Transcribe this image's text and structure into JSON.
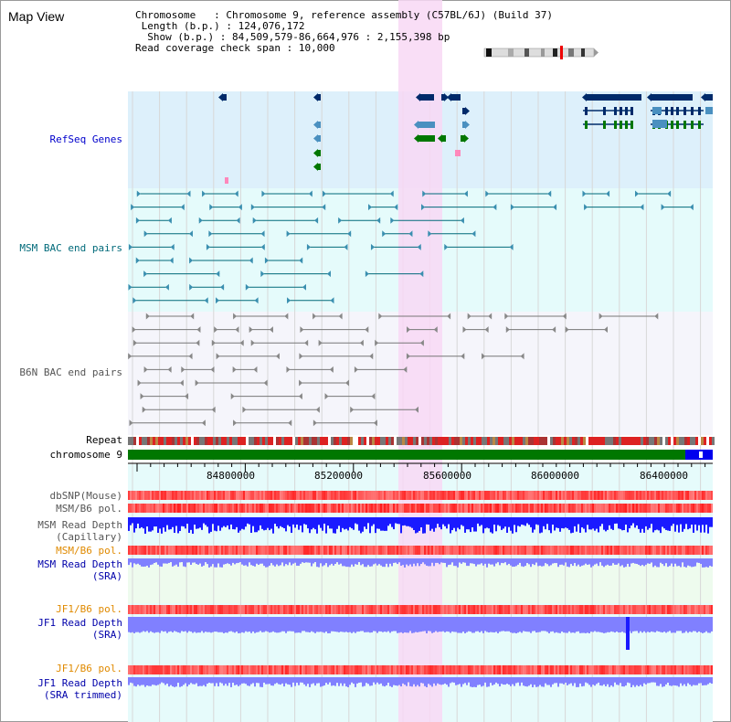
{
  "title": "Map View",
  "info": {
    "chromosome_key": "Chromosome",
    "chromosome_val": "Chromosome 9, reference assembly (C57BL/6J) (Build 37)",
    "length_key": "Length (b.p.)",
    "length_val": "124,076,172",
    "show_key": "Show (b.p.)",
    "show_val": "84,509,579-86,664,976 : 2,155,398 bp",
    "read_key": "Read coverage check span",
    "read_val": "10,000"
  },
  "tracks": {
    "refseq": "RefSeq Genes",
    "msm_bac": "MSM BAC end pairs",
    "b6n_bac": "B6N BAC end pairs",
    "repeat": "Repeat",
    "chromosome": "chromosome 9",
    "dbsnp": "dbSNP(Mouse)",
    "msm_b6_pol": "MSM/B6 pol.",
    "msm_read_depth_cap_1": "MSM Read Depth",
    "msm_read_depth_cap_2": "(Capillary)",
    "msm_b6_pol_2": "MSM/B6 pol.",
    "msm_read_depth_sra_1": "MSM Read Depth",
    "msm_read_depth_sra_2": "(SRA)",
    "jf1_b6_pol": "JF1/B6 pol.",
    "jf1_read_depth_sra_1": "JF1 Read Depth",
    "jf1_read_depth_sra_2": "(SRA)",
    "jf1_b6_pol_2": "JF1/B6 pol.",
    "jf1_read_depth_trim_1": "JF1 Read Depth",
    "jf1_read_depth_trim_2": "(SRA trimmed)"
  },
  "axis_ticks": [
    "84800000",
    "85200000",
    "85600000",
    "86000000",
    "86400000"
  ],
  "colors": {
    "refseq_bg": "#ddf0fb",
    "msm_bg": "#e5fbfb",
    "b6n_bg": "#f5f5fb",
    "highlight": "#f8d8f4",
    "chrom_green": "#007700",
    "chrom_blue": "#0000ee",
    "depth_blue": "#1a1aff",
    "sra_blue": "#8080ff",
    "pol_red": "#ff3333"
  }
}
